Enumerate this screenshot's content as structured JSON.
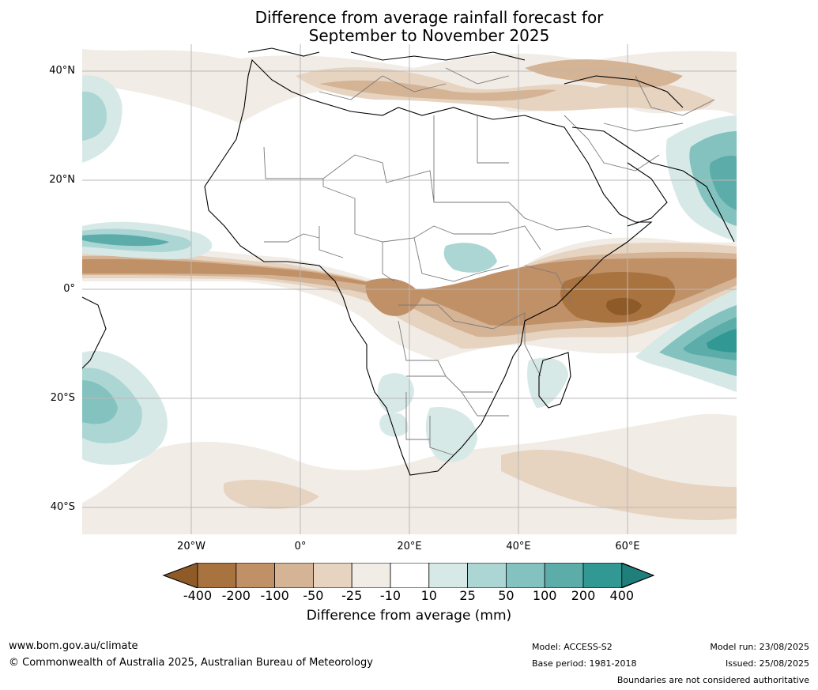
{
  "title_line1": "Difference from average rainfall forecast for",
  "title_line2": "September to November 2025",
  "lat_labels": [
    "40°N",
    "20°N",
    "0°",
    "20°S",
    "40°S"
  ],
  "lon_labels": [
    "20°W",
    "0°",
    "20°E",
    "40°E",
    "60°E"
  ],
  "colorbar": {
    "ticks": [
      "-400",
      "-200",
      "-100",
      "-50",
      "-25",
      "-10",
      "10",
      "25",
      "50",
      "100",
      "200",
      "400"
    ],
    "colors": [
      "#8e5a28",
      "#a97340",
      "#c09067",
      "#d5b395",
      "#e6d3c0",
      "#f2ece6",
      "#ffffff",
      "#d6e9e7",
      "#acd6d4",
      "#83c2bf",
      "#5cadaa",
      "#319893",
      "#217f7b"
    ],
    "title": "Difference from average (mm)"
  },
  "footer": {
    "website": "www.bom.gov.au/climate",
    "copyright": "© Commonwealth of Australia 2025, Australian Bureau of Meteorology",
    "model": "Model: ACCESS-S2",
    "base_period": "Base period: 1981-2018",
    "model_run": "Model run: 23/08/2025",
    "issued": "Issued: 25/08/2025",
    "disclaimer": "Boundaries are not considered authoritative"
  },
  "map": {
    "region": "Africa",
    "colors": {
      "land_outline": "#000000",
      "border": "#7a7a7a",
      "gridline": "#b8b8b8"
    }
  }
}
